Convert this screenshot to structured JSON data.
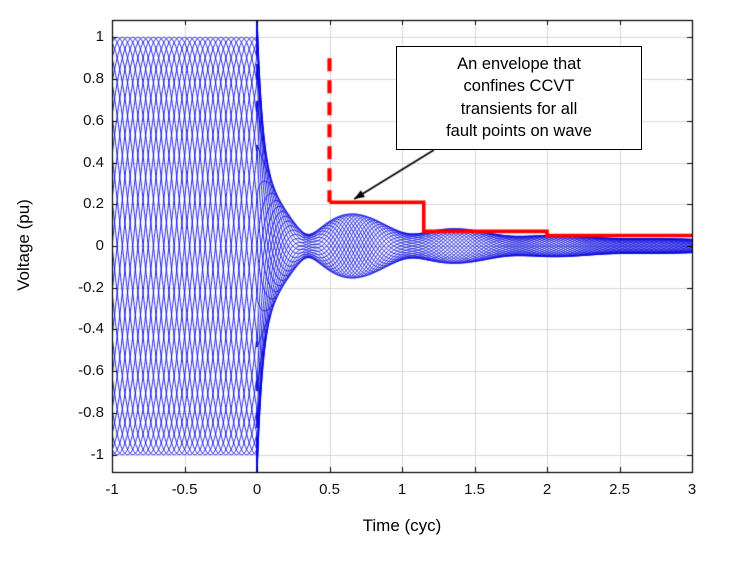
{
  "figure": {
    "background": "#ffffff"
  },
  "chart_data": {
    "type": "line",
    "title": "",
    "xlabel": "Time (cyc)",
    "ylabel": "Voltage (pu)",
    "xlim": [
      -1,
      3
    ],
    "ylim": [
      -1.083,
      1.083
    ],
    "grid": true,
    "grid_color": "#d9d9d9",
    "axis_color": "#000000",
    "xticks": {
      "values": [
        -1,
        -0.5,
        0,
        0.5,
        1,
        1.5,
        2,
        2.5,
        3
      ],
      "labels": [
        "-1",
        "-0.5",
        "0",
        "0.5",
        "1",
        "1.5",
        "2",
        "2.5",
        "3"
      ]
    },
    "yticks": {
      "values": [
        1,
        0.8,
        0.6,
        0.4,
        0.2,
        0,
        -0.2,
        -0.4,
        -0.6,
        -0.8,
        -1
      ],
      "labels": [
        "1",
        "0.8",
        "0.6",
        "0.4",
        "0.2",
        "0",
        "-0.2",
        "-0.4",
        "-0.6",
        "-0.8",
        "-1"
      ]
    },
    "annotation": {
      "text": "An envelope that\nconfines CCVT\ntransients for all\nfault points on wave",
      "arrow_color": "#000000",
      "arrow_tail": [
        1.22,
        0.46
      ],
      "arrow_tip": [
        0.67,
        0.225
      ]
    },
    "envelope": {
      "color": "#ff0000",
      "line_width": 3.6,
      "dashed_segment": {
        "x": 0.5,
        "y_from": 0.9,
        "y_to": 0.21
      },
      "solid_steps": [
        [
          0.5,
          0.21
        ],
        [
          1.15,
          0.21
        ],
        [
          1.15,
          0.07
        ],
        [
          2.0,
          0.07
        ],
        [
          2.0,
          0.05
        ],
        [
          3.0,
          0.05
        ]
      ]
    },
    "waveforms": {
      "color": "#0000dd",
      "count": 28,
      "line_width": 0.9,
      "fault_time": 0,
      "pre_fault": {
        "amplitude": 1,
        "freq": 1
      },
      "post_fault_terms": [
        {
          "A": 0.8,
          "decay": 25,
          "freq": 1
        },
        {
          "A": 0.14,
          "decay": 0.9,
          "freq": 1
        },
        {
          "A": 0.14,
          "decay": 1.6,
          "freq": 2.4
        },
        {
          "A": 0.035,
          "decay": 0.15,
          "freq": 1
        }
      ]
    }
  }
}
